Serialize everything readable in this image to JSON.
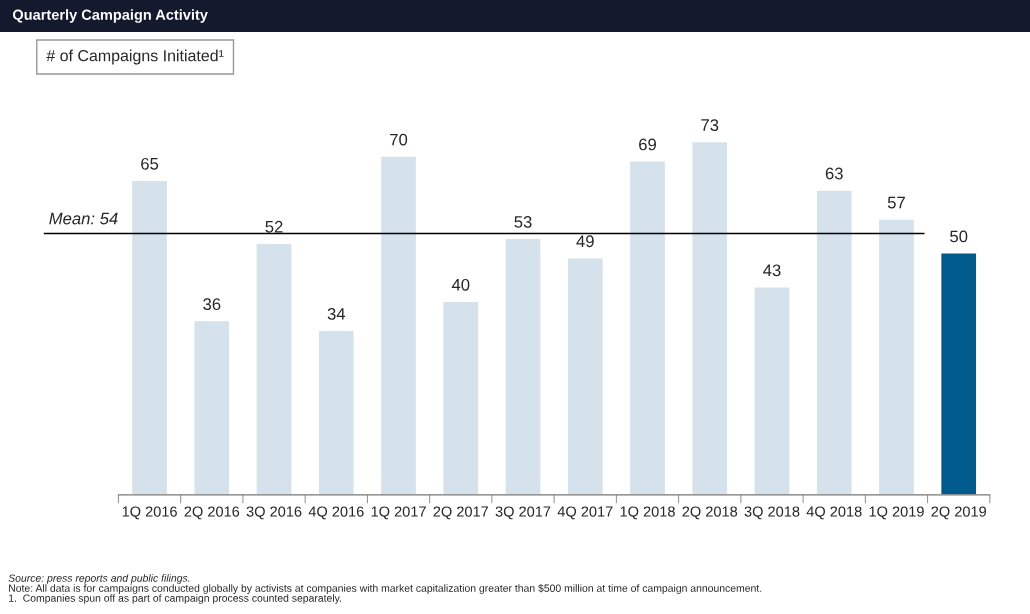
{
  "chart_data": {
    "type": "bar",
    "title": "Quarterly Campaign Activity",
    "subtitle": "# of Campaigns Initiated¹",
    "categories": [
      "1Q 2016",
      "2Q 2016",
      "3Q 2016",
      "4Q 2016",
      "1Q 2017",
      "2Q 2017",
      "3Q 2017",
      "4Q 2017",
      "1Q 2018",
      "2Q 2018",
      "3Q 2018",
      "4Q 2018",
      "1Q 2019",
      "2Q 2019"
    ],
    "values": [
      65,
      36,
      52,
      34,
      70,
      40,
      53,
      49,
      69,
      73,
      43,
      63,
      57,
      50
    ],
    "colors": [
      "#d5e1eb",
      "#d5e1eb",
      "#d5e1eb",
      "#d5e1eb",
      "#d5e1eb",
      "#d5e1eb",
      "#d5e1eb",
      "#d5e1eb",
      "#d5e1eb",
      "#d5e1eb",
      "#d5e1eb",
      "#d5e1eb",
      "#d5e1eb",
      "#005a8c"
    ],
    "data_labels": true,
    "grid": false,
    "ref_lines": [
      {
        "axis": "y",
        "value": 54,
        "label": "Mean: 54",
        "color": "#000000"
      }
    ],
    "annotations": [
      "Source: press reports and public filings.",
      "Note: All data is for campaigns conducted globally by activists at companies with market capitalization greater than $500 million at time of campaign announcement.",
      "1.  Companies spun off as part of campaign process counted separately."
    ]
  }
}
